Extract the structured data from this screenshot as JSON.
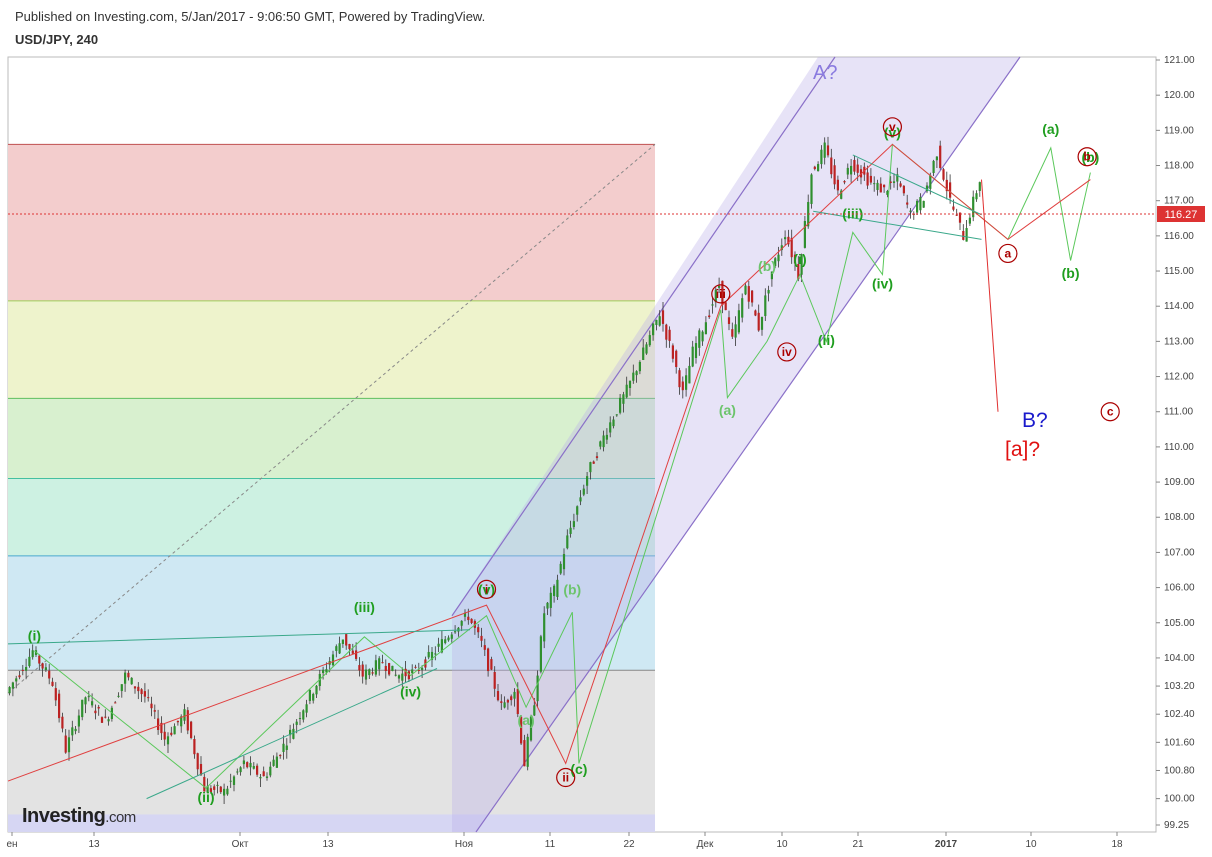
{
  "header": {
    "published": "Published on Investing.com, 5/Jan/2017 - 9:06:50 GMT, Powered by TradingView.",
    "symbol": "USD/JPY, 240"
  },
  "logo": {
    "brand": "Investing",
    "suffix": ".com"
  },
  "chart_data": {
    "type": "candlestick",
    "title": "USD/JPY, 240",
    "x_tick_labels": [
      "ен",
      "13",
      "Окт",
      "13",
      "Ноя",
      "11",
      "22",
      "Дек",
      "10",
      "21",
      "2017",
      "10",
      "18"
    ],
    "y_tick_labels": [
      "121.00",
      "120.00",
      "119.00",
      "118.00",
      "117.00",
      "116.00",
      "115.00",
      "114.00",
      "113.00",
      "112.00",
      "111.00",
      "110.00",
      "109.00",
      "108.00",
      "107.00",
      "106.00",
      "105.00",
      "104.00",
      "103.20",
      "102.40",
      "101.60",
      "100.80",
      "100.00",
      "99.25"
    ],
    "ylim": [
      99.25,
      121.0
    ],
    "current_price": "116.27",
    "fib_levels": [
      118.6,
      114.15,
      111.38,
      109.1,
      106.9,
      103.65,
      99.55
    ],
    "close_path": [
      [
        0,
        103.0
      ],
      [
        8,
        104.2
      ],
      [
        14,
        103.3
      ],
      [
        18,
        101.4
      ],
      [
        24,
        102.9
      ],
      [
        30,
        102.2
      ],
      [
        36,
        103.5
      ],
      [
        42,
        102.9
      ],
      [
        48,
        101.7
      ],
      [
        54,
        102.4
      ],
      [
        60,
        100.3
      ],
      [
        66,
        100.2
      ],
      [
        72,
        101.0
      ],
      [
        78,
        100.6
      ],
      [
        84,
        101.5
      ],
      [
        90,
        102.6
      ],
      [
        96,
        103.6
      ],
      [
        102,
        104.6
      ],
      [
        108,
        103.5
      ],
      [
        114,
        103.9
      ],
      [
        118,
        103.5
      ],
      [
        124,
        103.6
      ],
      [
        130,
        104.2
      ],
      [
        136,
        104.9
      ],
      [
        140,
        105.2
      ],
      [
        144,
        104.4
      ],
      [
        150,
        102.6
      ],
      [
        154,
        103.1
      ],
      [
        157,
        101.0
      ],
      [
        160,
        102.8
      ],
      [
        163,
        105.3
      ],
      [
        166,
        105.9
      ],
      [
        170,
        107.4
      ],
      [
        176,
        109.2
      ],
      [
        182,
        110.5
      ],
      [
        188,
        111.6
      ],
      [
        194,
        112.9
      ],
      [
        198,
        113.8
      ],
      [
        202,
        112.6
      ],
      [
        205,
        111.5
      ],
      [
        208,
        112.7
      ],
      [
        212,
        113.6
      ],
      [
        216,
        114.6
      ],
      [
        220,
        113.0
      ],
      [
        224,
        114.6
      ],
      [
        228,
        113.4
      ],
      [
        232,
        115.0
      ],
      [
        236,
        116.1
      ],
      [
        240,
        114.9
      ],
      [
        244,
        117.8
      ],
      [
        248,
        118.5
      ],
      [
        252,
        117.2
      ],
      [
        256,
        118.1
      ],
      [
        262,
        117.5
      ],
      [
        266,
        117.3
      ],
      [
        270,
        117.6
      ],
      [
        274,
        116.6
      ],
      [
        278,
        117.1
      ],
      [
        282,
        118.4
      ],
      [
        286,
        117.0
      ],
      [
        290,
        116.0
      ],
      [
        295,
        117.6
      ]
    ],
    "projection_path": [
      [
        295,
        117.6
      ],
      [
        300,
        111.0
      ]
    ],
    "wave_labels": [
      {
        "text": "(i)",
        "style": "green",
        "x": 8,
        "y": 104.5
      },
      {
        "text": "(ii)",
        "style": "green",
        "x": 60,
        "y": 99.9
      },
      {
        "text": "(iii)",
        "style": "green",
        "x": 108,
        "y": 105.3
      },
      {
        "text": "(iv)",
        "style": "green",
        "x": 122,
        "y": 102.9
      },
      {
        "text": "(v)",
        "style": "green",
        "x": 145,
        "y": 105.8
      },
      {
        "text": "(a)",
        "style": "lgreen",
        "x": 157,
        "y": 102.1
      },
      {
        "text": "(b)",
        "style": "lgreen",
        "x": 171,
        "y": 105.8
      },
      {
        "text": "(c)",
        "style": "green",
        "x": 173,
        "y": 100.7
      },
      {
        "text": "(a)",
        "style": "lgreen",
        "x": 218,
        "y": 110.9
      },
      {
        "text": "(b)",
        "style": "lgreen",
        "x": 230,
        "y": 115.0
      },
      {
        "text": "(i)",
        "style": "green",
        "x": 240,
        "y": 115.2
      },
      {
        "text": "(ii)",
        "style": "green",
        "x": 248,
        "y": 112.9
      },
      {
        "text": "(iii)",
        "style": "green",
        "x": 256,
        "y": 116.5
      },
      {
        "text": "(iv)",
        "style": "green",
        "x": 265,
        "y": 114.5
      },
      {
        "text": "(v)",
        "style": "green",
        "x": 268,
        "y": 118.8
      },
      {
        "text": "(a)",
        "style": "green",
        "x": 316,
        "y": 118.9
      },
      {
        "text": "(b)",
        "style": "green",
        "x": 328,
        "y": 118.1
      },
      {
        "text": "(b)",
        "style": "green",
        "x": 322,
        "y": 114.8
      }
    ],
    "circle_labels": [
      {
        "text": "i",
        "x": 145,
        "y": 105.95
      },
      {
        "text": "ii",
        "x": 169,
        "y": 100.6
      },
      {
        "text": "iii",
        "x": 216,
        "y": 114.35
      },
      {
        "text": "iv",
        "x": 236,
        "y": 112.7
      },
      {
        "text": "v",
        "x": 268,
        "y": 119.1
      },
      {
        "text": "a",
        "x": 303,
        "y": 115.5
      },
      {
        "text": "b",
        "x": 327,
        "y": 118.25
      },
      {
        "text": "c",
        "x": 334,
        "y": 111.0
      }
    ],
    "big_labels": {
      "a_question": "A?",
      "b_question": "B?",
      "a_bracket": "[a]?"
    }
  }
}
